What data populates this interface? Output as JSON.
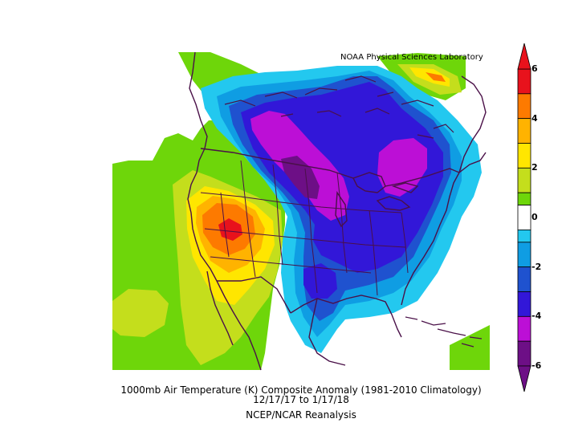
{
  "credit": "NOAA Physical Sciences Laboratory",
  "caption": {
    "line1": "1000mb Air Temperature (K) Composite Anomaly (1981-2010 Climatology)",
    "line2": "12/17/17  to 1/17/18",
    "line3": "NCEP/NCAR Reanalysis"
  },
  "colorbar": {
    "bands": [
      {
        "from": 5,
        "to": 6,
        "color": "#e8121c"
      },
      {
        "from": 4,
        "to": 5,
        "color": "#fd7a00"
      },
      {
        "from": 3,
        "to": 4,
        "color": "#ffb300"
      },
      {
        "from": 2,
        "to": 3,
        "color": "#ffe600"
      },
      {
        "from": 1,
        "to": 2,
        "color": "#c4de1c"
      },
      {
        "from": 0.5,
        "to": 1,
        "color": "#6ed60a"
      },
      {
        "from": -0.5,
        "to": 0.5,
        "color": "#ffffff"
      },
      {
        "from": -1,
        "to": -0.5,
        "color": "#23c8ef"
      },
      {
        "from": -2,
        "to": -1,
        "color": "#0f9de3"
      },
      {
        "from": -3,
        "to": -2,
        "color": "#1f52cf"
      },
      {
        "from": -4,
        "to": -3,
        "color": "#3217d8"
      },
      {
        "from": -5,
        "to": -4,
        "color": "#bc0fd6"
      },
      {
        "from": -6,
        "to": -5,
        "color": "#6d0f86"
      }
    ],
    "tick_labels": [
      "6",
      "4",
      "2",
      "0",
      "-2",
      "-4",
      "-6"
    ]
  },
  "anomaly_colors": {
    "red": "#e8121c",
    "orange": "#fd7a00",
    "gold": "#ffb300",
    "yellow": "#ffe600",
    "yellow_green": "#c4de1c",
    "green": "#6ed60a",
    "cyan": "#23c8ef",
    "light_blue": "#0f9de3",
    "blue": "#1f52cf",
    "deep_blue": "#3217d8",
    "magenta": "#bc0fd6",
    "purple": "#6d0f86",
    "boundaries": "#4a1048"
  }
}
